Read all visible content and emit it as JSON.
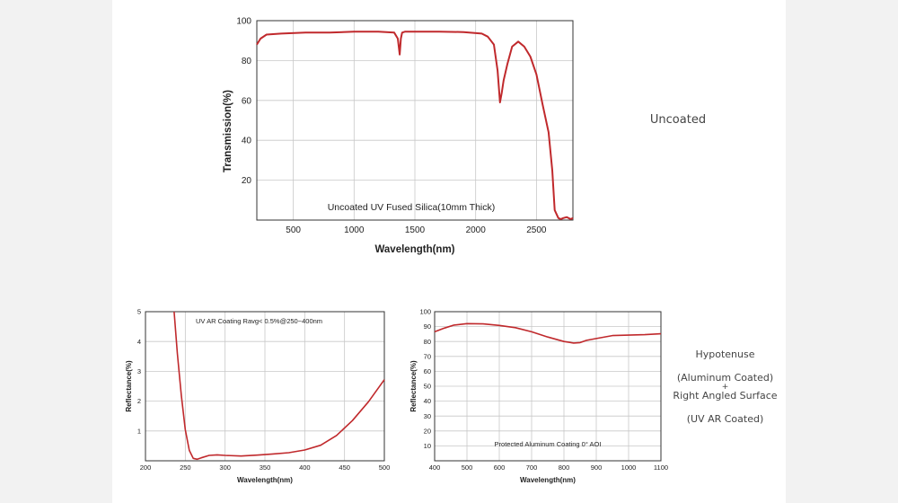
{
  "colors": {
    "curve": "#c0292c",
    "grid": "#c8c8c8",
    "frame": "#333333",
    "text": "#222222"
  },
  "side_labels": {
    "uncoated": "Uncoated",
    "hypotenuse": "Hypotenuse",
    "aluminum_coated": "(Aluminum Coated)",
    "plus": "+",
    "right_angled": "Right Angled Surface",
    "uv_ar_coated": "(UV AR Coated)"
  },
  "chart_data": [
    {
      "type": "line",
      "annotation": "Uncoated UV Fused Silica(10mm Thick)",
      "xlabel": "Wavelength(nm)",
      "ylabel": "Transmission(%)",
      "xlim": [
        200,
        2800
      ],
      "ylim": [
        0,
        100
      ],
      "xticks": [
        500,
        1000,
        1500,
        2000,
        2500
      ],
      "yticks": [
        20,
        40,
        60,
        80,
        100
      ],
      "grid": true,
      "series": [
        {
          "x": [
            200,
            230,
            280,
            400,
            600,
            800,
            1000,
            1200,
            1330,
            1360,
            1375,
            1385,
            1395,
            1420,
            1500,
            1700,
            1900,
            2050,
            2100,
            2150,
            2180,
            2200,
            2215,
            2230,
            2260,
            2300,
            2350,
            2400,
            2450,
            2500,
            2550,
            2600,
            2630,
            2650,
            2680,
            2700,
            2720,
            2750,
            2780,
            2800
          ],
          "y": [
            88,
            91,
            93,
            93.5,
            94,
            94,
            94.5,
            94.5,
            94,
            91,
            83,
            91,
            94,
            94.5,
            94.5,
            94.5,
            94.3,
            93.5,
            92,
            88,
            75,
            59,
            64,
            70,
            78,
            87,
            89.5,
            87,
            82,
            73,
            58,
            44,
            25,
            5,
            1,
            0.5,
            1,
            1.5,
            0.5,
            1
          ]
        }
      ]
    },
    {
      "type": "line",
      "annotation": "UV AR Coating Ravg< 0.5%@250~400nm",
      "xlabel": "Wavelength(nm)",
      "ylabel": "Reflectance(%)",
      "xlim": [
        200,
        500
      ],
      "ylim": [
        0,
        5
      ],
      "xticks": [
        200,
        250,
        300,
        350,
        400,
        450,
        500
      ],
      "yticks": [
        1,
        2,
        3,
        4,
        5
      ],
      "grid": true,
      "series": [
        {
          "x": [
            236,
            240,
            245,
            250,
            255,
            260,
            265,
            270,
            280,
            290,
            300,
            320,
            340,
            360,
            380,
            400,
            420,
            440,
            460,
            480,
            500
          ],
          "y": [
            5,
            3.6,
            2.2,
            1.05,
            0.35,
            0.08,
            0.05,
            0.1,
            0.18,
            0.2,
            0.18,
            0.16,
            0.19,
            0.23,
            0.27,
            0.36,
            0.52,
            0.85,
            1.35,
            1.98,
            2.72
          ]
        }
      ]
    },
    {
      "type": "line",
      "annotation": "Protected Aluminum Coating  0° AOI",
      "xlabel": "Wavelength(nm)",
      "ylabel": "Reflectance(%)",
      "xlim": [
        400,
        1100
      ],
      "ylim": [
        0,
        100
      ],
      "xticks": [
        400,
        500,
        600,
        700,
        800,
        900,
        1000,
        1100
      ],
      "yticks": [
        10,
        20,
        30,
        40,
        50,
        60,
        70,
        80,
        90,
        100
      ],
      "grid": true,
      "series": [
        {
          "x": [
            400,
            430,
            460,
            500,
            550,
            600,
            650,
            700,
            750,
            800,
            830,
            850,
            870,
            900,
            950,
            1000,
            1050,
            1100
          ],
          "y": [
            86.5,
            89,
            91,
            92,
            91.8,
            90.8,
            89.3,
            86.5,
            83,
            80,
            79,
            79.3,
            80.8,
            82,
            84,
            84.3,
            84.6,
            85.2
          ]
        }
      ]
    }
  ]
}
